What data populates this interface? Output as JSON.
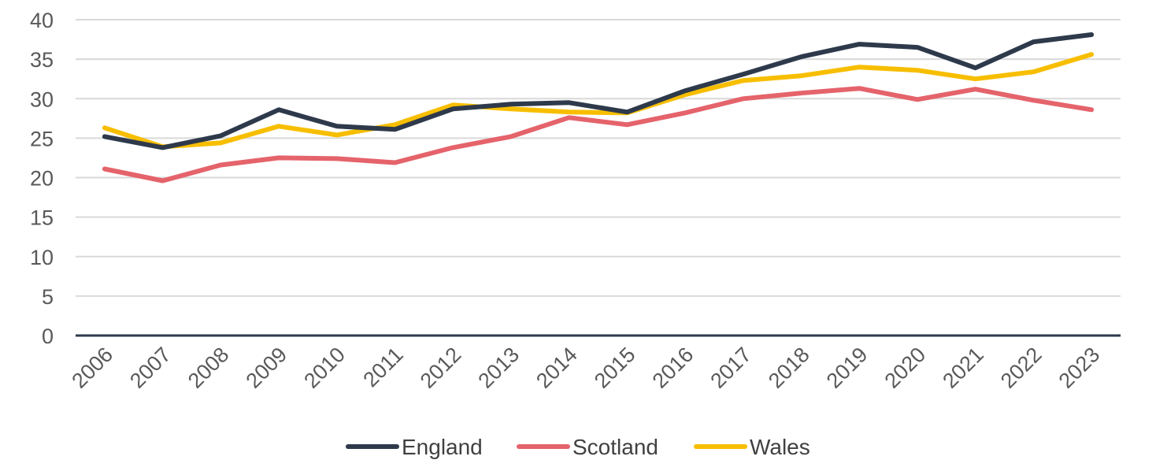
{
  "chart_data": {
    "type": "line",
    "title": "",
    "xlabel": "",
    "ylabel": "",
    "ylim": [
      0,
      40
    ],
    "yticks": [
      0,
      5,
      10,
      15,
      20,
      25,
      30,
      35,
      40
    ],
    "grid": true,
    "legend_position": "bottom",
    "categories": [
      "2006",
      "2007",
      "2008",
      "2009",
      "2010",
      "2011",
      "2012",
      "2013",
      "2014",
      "2015",
      "2016",
      "2017",
      "2018",
      "2019",
      "2020",
      "2021",
      "2022",
      "2023"
    ],
    "series": [
      {
        "name": "England",
        "color": "#2e3a4b",
        "values": [
          25.2,
          23.8,
          25.3,
          28.6,
          26.5,
          26.1,
          28.7,
          29.3,
          29.5,
          28.3,
          31.0,
          33.1,
          35.3,
          36.9,
          36.5,
          33.9,
          37.2,
          38.1
        ]
      },
      {
        "name": "Scotland",
        "color": "#e5636b",
        "values": [
          21.1,
          19.6,
          21.6,
          22.5,
          22.4,
          21.9,
          23.8,
          25.2,
          27.6,
          26.7,
          28.2,
          30.0,
          30.7,
          31.3,
          29.9,
          31.2,
          29.8,
          28.6
        ]
      },
      {
        "name": "Wales",
        "color": "#f7be00",
        "values": [
          26.3,
          23.9,
          24.4,
          26.5,
          25.4,
          26.7,
          29.2,
          28.7,
          28.3,
          28.2,
          30.5,
          32.3,
          32.9,
          34.0,
          33.6,
          32.5,
          33.4,
          35.6
        ]
      }
    ]
  }
}
